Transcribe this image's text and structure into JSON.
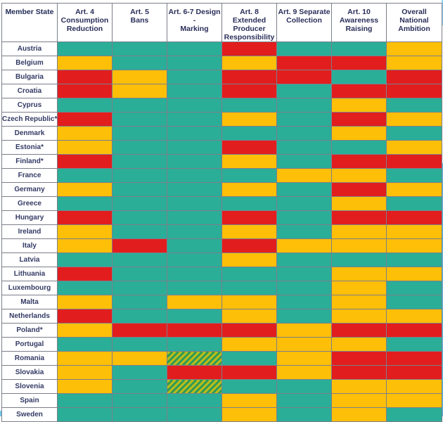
{
  "chart_data": {
    "type": "table",
    "columns": [
      "Member State",
      "Art. 4 Consumption Reduction",
      "Art. 5 Bans",
      "Art. 6-7 Design - Marking",
      "Art. 8 Extended Producer Responsibility",
      "Art. 9 Separate Collection",
      "Art. 10 Awareness Raising",
      "Overall National Ambition"
    ],
    "header_lines": [
      [
        "Member State"
      ],
      [
        "Art. 4",
        "Consumption",
        "Reduction"
      ],
      [
        "Art. 5",
        "Bans"
      ],
      [
        "Art. 6-7 Design -",
        "Marking"
      ],
      [
        "Art. 8 Extended",
        "Producer",
        "Responsibility"
      ],
      [
        "Art. 9 Separate",
        "Collection"
      ],
      [
        "Art. 10",
        "Awareness",
        "Raising"
      ],
      [
        "Overall National",
        "Ambition"
      ]
    ],
    "status_colors": {
      "g": "#2aae98",
      "y": "#fdbf08",
      "r": "#e21d1e",
      "h": "#b8bc1c"
    },
    "rows": [
      {
        "country": "Austria",
        "cells": [
          "g",
          "g",
          "g",
          "r",
          "g",
          "g",
          "y"
        ]
      },
      {
        "country": "Belgium",
        "cells": [
          "y",
          "g",
          "g",
          "y",
          "r",
          "r",
          "y"
        ]
      },
      {
        "country": "Bulgaria",
        "cells": [
          "r",
          "y",
          "g",
          "r",
          "r",
          "g",
          "r"
        ]
      },
      {
        "country": "Croatia",
        "cells": [
          "r",
          "y",
          "g",
          "r",
          "g",
          "r",
          "r"
        ]
      },
      {
        "country": "Cyprus",
        "cells": [
          "g",
          "g",
          "g",
          "g",
          "g",
          "y",
          "g"
        ]
      },
      {
        "country": "Czech Republic*",
        "cells": [
          "r",
          "g",
          "g",
          "y",
          "g",
          "r",
          "y"
        ]
      },
      {
        "country": "Denmark",
        "cells": [
          "y",
          "g",
          "g",
          "g",
          "g",
          "y",
          "g"
        ]
      },
      {
        "country": "Estonia*",
        "cells": [
          "y",
          "g",
          "g",
          "r",
          "g",
          "g",
          "y"
        ]
      },
      {
        "country": "Finland*",
        "cells": [
          "r",
          "g",
          "g",
          "y",
          "g",
          "r",
          "r"
        ]
      },
      {
        "country": "France",
        "cells": [
          "g",
          "g",
          "g",
          "g",
          "y",
          "y",
          "g"
        ]
      },
      {
        "country": "Germany",
        "cells": [
          "y",
          "g",
          "g",
          "y",
          "g",
          "r",
          "y"
        ]
      },
      {
        "country": "Greece",
        "cells": [
          "g",
          "g",
          "g",
          "g",
          "g",
          "y",
          "g"
        ]
      },
      {
        "country": "Hungary",
        "cells": [
          "r",
          "g",
          "g",
          "r",
          "g",
          "r",
          "r"
        ]
      },
      {
        "country": "Ireland",
        "cells": [
          "y",
          "g",
          "g",
          "y",
          "g",
          "y",
          "y"
        ]
      },
      {
        "country": "Italy",
        "cells": [
          "y",
          "r",
          "g",
          "r",
          "y",
          "y",
          "y"
        ]
      },
      {
        "country": "Latvia",
        "cells": [
          "g",
          "g",
          "g",
          "y",
          "g",
          "g",
          "g"
        ]
      },
      {
        "country": "Lithuania",
        "cells": [
          "r",
          "g",
          "g",
          "g",
          "g",
          "y",
          "y"
        ]
      },
      {
        "country": "Luxembourg",
        "cells": [
          "g",
          "g",
          "g",
          "g",
          "g",
          "y",
          "g"
        ]
      },
      {
        "country": "Malta",
        "cells": [
          "y",
          "g",
          "y",
          "y",
          "g",
          "y",
          "g"
        ]
      },
      {
        "country": "Netherlands",
        "cells": [
          "r",
          "g",
          "g",
          "y",
          "g",
          "y",
          "y"
        ]
      },
      {
        "country": "Poland*",
        "cells": [
          "y",
          "r",
          "r",
          "r",
          "y",
          "r",
          "r"
        ]
      },
      {
        "country": "Portugal",
        "cells": [
          "g",
          "g",
          "g",
          "y",
          "y",
          "y",
          "g"
        ]
      },
      {
        "country": "Romania",
        "cells": [
          "y",
          "y",
          "h",
          "g",
          "y",
          "r",
          "r"
        ]
      },
      {
        "country": "Slovakia",
        "cells": [
          "y",
          "g",
          "r",
          "r",
          "y",
          "r",
          "r"
        ]
      },
      {
        "country": "Slovenia",
        "cells": [
          "y",
          "g",
          "h",
          "g",
          "g",
          "y",
          "y"
        ]
      },
      {
        "country": "Spain",
        "cells": [
          "g",
          "g",
          "g",
          "y",
          "g",
          "y",
          "y"
        ]
      },
      {
        "country": "Sweden",
        "cells": [
          "g",
          "g",
          "g",
          "y",
          "g",
          "y",
          "g"
        ]
      }
    ]
  }
}
